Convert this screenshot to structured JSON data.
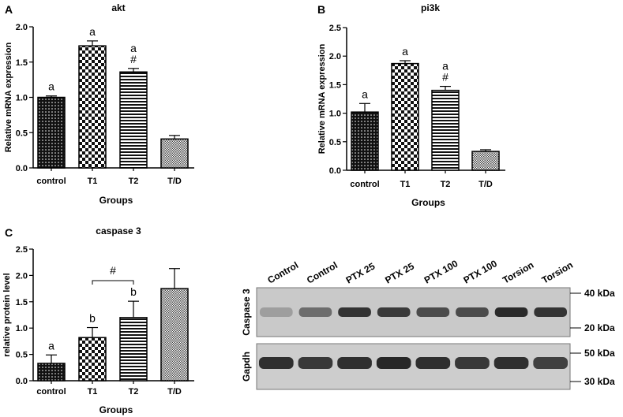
{
  "chart_data": [
    {
      "panel": "A",
      "type": "bar",
      "title": "akt",
      "xlabel": "Groups",
      "ylabel": "Relative mRNA expression",
      "categories": [
        "control",
        "T1",
        "T2",
        "T/D"
      ],
      "values": [
        1.0,
        1.73,
        1.36,
        0.41
      ],
      "errors": [
        0.02,
        0.07,
        0.05,
        0.05
      ],
      "annotations": [
        [
          "a"
        ],
        [
          "a"
        ],
        [
          "a",
          "#"
        ],
        []
      ],
      "ylim": [
        0,
        2.0
      ],
      "yticks": [
        "0.0",
        "0.5",
        "1.0",
        "1.5",
        "2.0"
      ],
      "patterns": [
        "dots",
        "checker",
        "hlines",
        "fine"
      ]
    },
    {
      "panel": "B",
      "type": "bar",
      "title": "pi3k",
      "xlabel": "Groups",
      "ylabel": "Relative mRNA expression",
      "categories": [
        "control",
        "T1",
        "T2",
        "T/D"
      ],
      "values": [
        1.02,
        1.87,
        1.4,
        0.33
      ],
      "errors": [
        0.15,
        0.05,
        0.07,
        0.03
      ],
      "annotations": [
        [
          "a"
        ],
        [
          "a"
        ],
        [
          "a",
          "#"
        ],
        []
      ],
      "ylim": [
        0,
        2.5
      ],
      "yticks": [
        "0.0",
        "0.5",
        "1.0",
        "1.5",
        "2.0",
        "2.5"
      ],
      "patterns": [
        "dots",
        "checker",
        "hlines",
        "fine"
      ]
    },
    {
      "panel": "C",
      "type": "bar",
      "title": "caspase 3",
      "xlabel": "Groups",
      "ylabel": "relative protein level",
      "categories": [
        "control",
        "T1",
        "T2",
        "T/D"
      ],
      "values": [
        0.33,
        0.82,
        1.2,
        1.75
      ],
      "errors": [
        0.16,
        0.19,
        0.31,
        0.38
      ],
      "annotations": [
        [
          "a"
        ],
        [
          "b"
        ],
        [
          "b"
        ],
        []
      ],
      "bracket": {
        "from": 1,
        "to": 2,
        "label": "#"
      },
      "ylim": [
        0,
        2.5
      ],
      "yticks": [
        "0.0",
        "0.5",
        "1.0",
        "1.5",
        "2.0",
        "2.5"
      ],
      "patterns": [
        "dots",
        "checker",
        "hlines",
        "fine"
      ]
    }
  ],
  "blot": {
    "lanes": [
      "Control",
      "Control",
      "PTX 25",
      "PTX 25",
      "PTX 100",
      "PTX 100",
      "Torsion",
      "Torsion"
    ],
    "top_label": "Caspase 3",
    "bottom_label": "Gapdh",
    "markers": [
      "40 kDa",
      "20 kDa",
      "50 kDa",
      "30 kDa"
    ],
    "caspase_intensity": [
      0.25,
      0.55,
      0.9,
      0.85,
      0.75,
      0.75,
      0.95,
      0.9
    ],
    "gapdh_intensity": [
      0.9,
      0.85,
      0.9,
      0.95,
      0.9,
      0.85,
      0.9,
      0.8
    ]
  },
  "colors": {
    "bar_ink": "#111111",
    "axis": "#000000",
    "blot_bg": "#cfcfcf"
  }
}
